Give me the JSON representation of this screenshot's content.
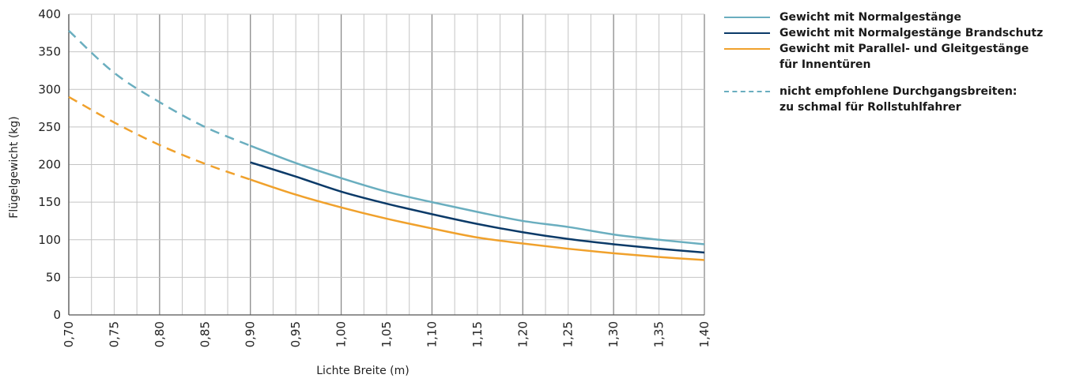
{
  "chart_data": {
    "type": "line",
    "title": "",
    "xlabel": "Lichte Breite (m)",
    "ylabel": "Flügelgewicht (kg)",
    "xlim": [
      0.7,
      1.4
    ],
    "ylim": [
      0,
      400
    ],
    "x_ticks": [
      "0,70",
      "0,75",
      "0,80",
      "0,85",
      "0,90",
      "0,95",
      "1,00",
      "1,05",
      "1,10",
      "1,15",
      "1,20",
      "1,25",
      "1,30",
      "1,35",
      "1,40"
    ],
    "y_ticks": [
      "0",
      "50",
      "100",
      "150",
      "200",
      "250",
      "300",
      "350",
      "400"
    ],
    "grid": true,
    "legend_position": "right",
    "series": [
      {
        "name": "Gewicht mit Normalgestänge",
        "color": "#6aaebf",
        "x": [
          0.7,
          0.75,
          0.8,
          0.85,
          0.9,
          0.95,
          1.0,
          1.05,
          1.1,
          1.15,
          1.2,
          1.25,
          1.3,
          1.35,
          1.4
        ],
        "values": [
          378,
          322,
          283,
          250,
          225,
          202,
          182,
          164,
          150,
          137,
          125,
          117,
          107,
          100,
          94
        ],
        "dashed_until": 0.9
      },
      {
        "name": "Gewicht mit Normalgestänge Brandschutz",
        "color": "#0b3a68",
        "x": [
          0.9,
          0.95,
          1.0,
          1.05,
          1.1,
          1.15,
          1.2,
          1.25,
          1.3,
          1.35,
          1.4
        ],
        "values": [
          203,
          184,
          164,
          148,
          134,
          121,
          110,
          101,
          94,
          88,
          83
        ]
      },
      {
        "name": "Gewicht mit Parallel- und Gleitgestänge für Innentüren",
        "color": "#f0a12c",
        "x": [
          0.7,
          0.75,
          0.8,
          0.85,
          0.9,
          0.95,
          1.0,
          1.05,
          1.1,
          1.15,
          1.2,
          1.25,
          1.3,
          1.35,
          1.4
        ],
        "values": [
          290,
          256,
          226,
          201,
          180,
          160,
          143,
          128,
          115,
          103,
          95,
          88,
          82,
          77,
          73
        ],
        "dashed_until": 0.9
      }
    ],
    "legend": {
      "entries": [
        {
          "label_lines": [
            "Gewicht mit Normalgestänge"
          ],
          "color": "#6aaebf",
          "dashed": false
        },
        {
          "label_lines": [
            "Gewicht mit Normalgestänge Brandschutz"
          ],
          "color": "#0b3a68",
          "dashed": false
        },
        {
          "label_lines": [
            "Gewicht mit Parallel- und Gleitgestänge",
            "für Innentüren"
          ],
          "color": "#f0a12c",
          "dashed": false
        },
        {
          "label_lines": [
            "nicht empfohlene Durchgangsbreiten:",
            "zu schmal für Rollstuhlfahrer"
          ],
          "color": "#6aaebf",
          "dashed": true
        }
      ]
    }
  }
}
